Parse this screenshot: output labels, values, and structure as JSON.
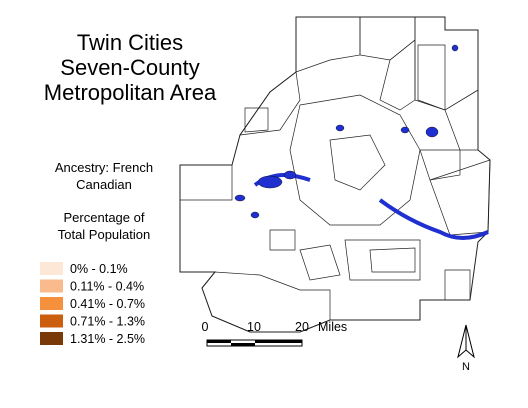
{
  "title": [
    "Twin Cities",
    "Seven-County",
    "Metropolitan Area"
  ],
  "subtitle": [
    "Ancestry: French",
    "Canadian"
  ],
  "legend": {
    "title": [
      "Percentage of",
      "Total Population"
    ],
    "items": [
      {
        "label": "0% - 0.1%",
        "color": "#fde8d8"
      },
      {
        "label": "0.11% - 0.4%",
        "color": "#f9bb8c"
      },
      {
        "label": "0.41% - 0.7%",
        "color": "#f5913c"
      },
      {
        "label": "0.71% - 1.3%",
        "color": "#cc5e10"
      },
      {
        "label": "1.31% - 2.5%",
        "color": "#7a3a08"
      }
    ]
  },
  "scale_bar": {
    "labels": [
      "0",
      "10",
      "20",
      "Miles"
    ]
  },
  "north_arrow": "N"
}
